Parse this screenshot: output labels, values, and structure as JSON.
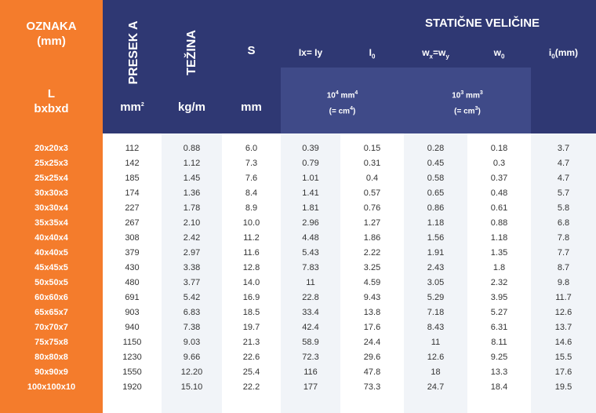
{
  "header": {
    "oznaka_title": "OZNAKA",
    "oznaka_unit": "(mm)",
    "oznaka_sub1": "L",
    "oznaka_sub2": "bxbxd",
    "presek": "PRESEK A",
    "tezina": "TEŽINA",
    "s": "S",
    "group_title": "STATIČNE VELIČINE",
    "col_ix": "Ix= Iy",
    "col_i0_main": "I",
    "col_i0_sub": "0",
    "col_wx_main": "w",
    "col_wx_sub1": "x",
    "col_wx_eq": "=w",
    "col_wx_sub2": "y",
    "col_w0_main": "w",
    "col_w0_sub": "0",
    "col_i0mm_main": "i",
    "col_i0mm_sub": "0",
    "col_i0mm_unit": "(mm)",
    "unit_mm2_base": "mm",
    "unit_mm2_sup": "2",
    "unit_kgm": "kg/m",
    "unit_mm": "mm",
    "unit_104_base": "10",
    "unit_104_sup": "4",
    "unit_104_mm": "mm",
    "unit_104_mm_sup": "4",
    "unit_cm4_pre": "(= cm",
    "unit_cm4_sup": "4",
    "unit_cm4_post": ")",
    "unit_103_base": "10",
    "unit_103_sup": "3",
    "unit_103_mm": "mm",
    "unit_103_mm_sup": "3",
    "unit_cm3_pre": "(= cm",
    "unit_cm3_sup": "3",
    "unit_cm3_post": ")"
  },
  "rows": [
    [
      "20x20x3",
      "112",
      "0.88",
      "6.0",
      "0.39",
      "0.15",
      "0.28",
      "0.18",
      "3.7"
    ],
    [
      "25x25x3",
      "142",
      "1.12",
      "7.3",
      "0.79",
      "0.31",
      "0.45",
      "0.3",
      "4.7"
    ],
    [
      "25x25x4",
      "185",
      "1.45",
      "7.6",
      "1.01",
      "0.4",
      "0.58",
      "0.37",
      "4.7"
    ],
    [
      "30x30x3",
      "174",
      "1.36",
      "8.4",
      "1.41",
      "0.57",
      "0.65",
      "0.48",
      "5.7"
    ],
    [
      "30x30x4",
      "227",
      "1.78",
      "8.9",
      "1.81",
      "0.76",
      "0.86",
      "0.61",
      "5.8"
    ],
    [
      "35x35x4",
      "267",
      "2.10",
      "10.0",
      "2.96",
      "1.27",
      "1.18",
      "0.88",
      "6.8"
    ],
    [
      "40x40x4",
      "308",
      "2.42",
      "11.2",
      "4.48",
      "1.86",
      "1.56",
      "1.18",
      "7.8"
    ],
    [
      "40x40x5",
      "379",
      "2.97",
      "11.6",
      "5.43",
      "2.22",
      "1.91",
      "1.35",
      "7.7"
    ],
    [
      "45x45x5",
      "430",
      "3.38",
      "12.8",
      "7.83",
      "3.25",
      "2.43",
      "1.8",
      "8.7"
    ],
    [
      "50x50x5",
      "480",
      "3.77",
      "14.0",
      "11",
      "4.59",
      "3.05",
      "2.32",
      "9.8"
    ],
    [
      "60x60x6",
      "691",
      "5.42",
      "16.9",
      "22.8",
      "9.43",
      "5.29",
      "3.95",
      "11.7"
    ],
    [
      "65x65x7",
      "903",
      "6.83",
      "18.5",
      "33.4",
      "13.8",
      "7.18",
      "5.27",
      "12.6"
    ],
    [
      "70x70x7",
      "940",
      "7.38",
      "19.7",
      "42.4",
      "17.6",
      "8.43",
      "6.31",
      "13.7"
    ],
    [
      "75x75x8",
      "1150",
      "9.03",
      "21.3",
      "58.9",
      "24.4",
      "11",
      "8.11",
      "14.6"
    ],
    [
      "80x80x8",
      "1230",
      "9.66",
      "22.6",
      "72.3",
      "29.6",
      "12.6",
      "9.25",
      "15.5"
    ],
    [
      "90x90x9",
      "1550",
      "12.20",
      "25.4",
      "116",
      "47.8",
      "18",
      "13.3",
      "17.6"
    ],
    [
      "100x100x10",
      "1920",
      "15.10",
      "22.2",
      "177",
      "73.3",
      "24.7",
      "18.4",
      "19.5"
    ]
  ]
}
